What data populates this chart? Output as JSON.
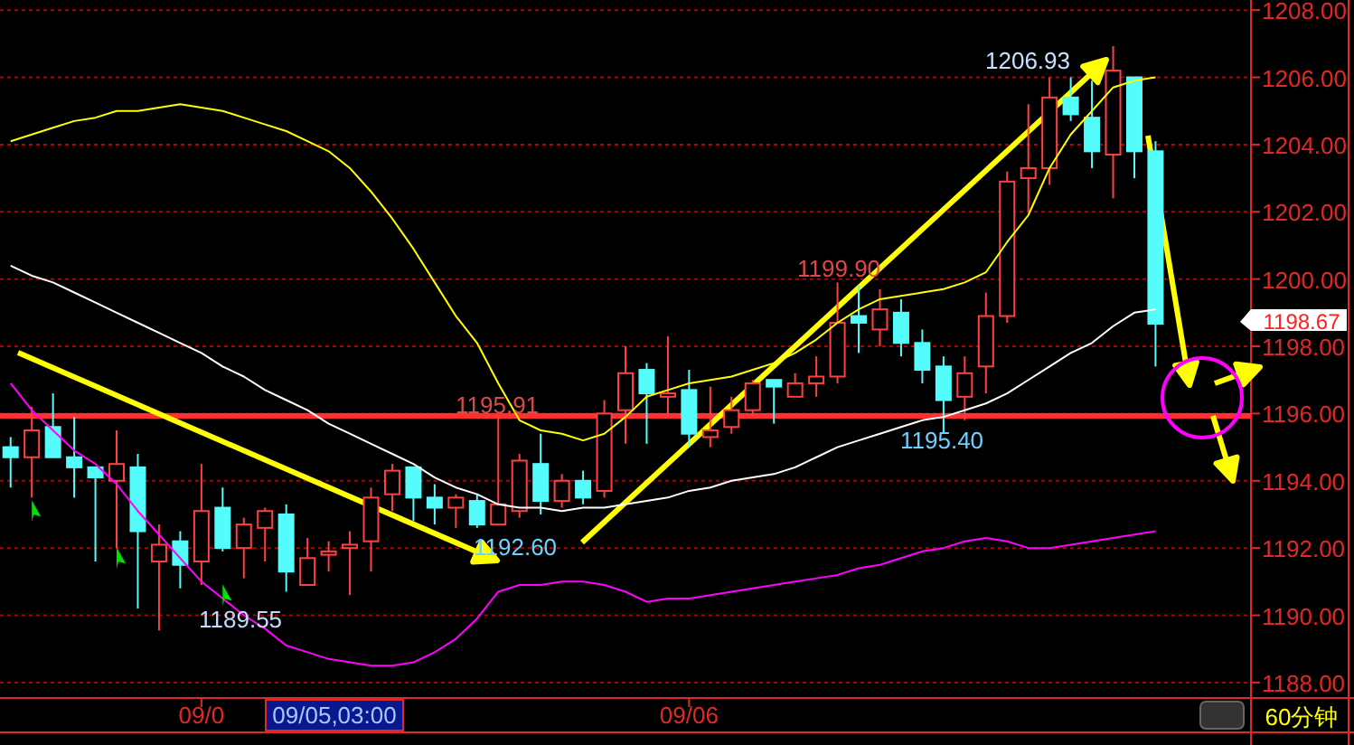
{
  "chart_data": {
    "type": "candlestick",
    "categories": [
      null,
      null,
      null,
      null,
      null,
      null,
      null,
      null,
      null,
      "09/0",
      null,
      null,
      null,
      null,
      null,
      null,
      null,
      null,
      null,
      null,
      null,
      null,
      null,
      null,
      null,
      null,
      null,
      null,
      null,
      null,
      null,
      null,
      "09/06",
      null,
      null,
      null,
      null,
      null,
      null,
      null,
      null,
      null,
      null,
      null,
      null,
      null,
      null,
      null,
      null,
      null,
      null,
      null,
      null,
      null,
      null,
      null,
      null,
      null,
      null
    ],
    "ylim": [
      1187.54,
      1208.3
    ],
    "yticks": [
      {
        "value": 1188,
        "label": "1188.00"
      },
      {
        "value": 1190,
        "label": "1190.00"
      },
      {
        "value": 1192,
        "label": "1192.00"
      },
      {
        "value": 1194,
        "label": "1194.00"
      },
      {
        "value": 1196,
        "label": "1196.00"
      },
      {
        "value": 1198,
        "label": "1198.00"
      },
      {
        "value": 1200,
        "label": "1200.00"
      },
      {
        "value": 1202,
        "label": "1202.00"
      },
      {
        "value": 1204,
        "label": "1204.00"
      },
      {
        "value": 1206,
        "label": "1206.00"
      },
      {
        "value": 1208,
        "label": "1208.00"
      }
    ],
    "grid": "y",
    "ohlc": [
      [
        1195.0,
        1195.3,
        1193.8,
        1194.7
      ],
      [
        1194.7,
        1196.2,
        1193.5,
        1195.5
      ],
      [
        1195.6,
        1196.6,
        1194.7,
        1194.7
      ],
      [
        1194.7,
        1195.9,
        1193.5,
        1194.4
      ],
      [
        1194.4,
        1194.4,
        1191.6,
        1194.1
      ],
      [
        1194.0,
        1195.5,
        1192.0,
        1194.5
      ],
      [
        1194.4,
        1194.8,
        1190.2,
        1192.5
      ],
      [
        1191.6,
        1192.7,
        1189.55,
        1192.1
      ],
      [
        1192.2,
        1192.5,
        1190.8,
        1191.5
      ],
      [
        1191.6,
        1194.5,
        1190.9,
        1193.1
      ],
      [
        1193.2,
        1193.8,
        1191.9,
        1192.0
      ],
      [
        1192.0,
        1192.9,
        1191.1,
        1192.7
      ],
      [
        1192.6,
        1193.2,
        1191.6,
        1193.1
      ],
      [
        1193.0,
        1193.3,
        1190.7,
        1191.3
      ],
      [
        1190.9,
        1192.3,
        1190.9,
        1191.7
      ],
      [
        1191.8,
        1192.2,
        1191.3,
        1191.9
      ],
      [
        1192.0,
        1192.5,
        1190.6,
        1192.1
      ],
      [
        1192.2,
        1193.8,
        1191.3,
        1193.5
      ],
      [
        1193.6,
        1194.5,
        1193.1,
        1194.3
      ],
      [
        1194.4,
        1194.4,
        1192.8,
        1193.5
      ],
      [
        1193.5,
        1193.9,
        1192.7,
        1193.2
      ],
      [
        1193.2,
        1193.6,
        1192.6,
        1193.5
      ],
      [
        1193.4,
        1193.6,
        1192.6,
        1192.7
      ],
      [
        1192.7,
        1195.91,
        1192.7,
        1193.3
      ],
      [
        1193.1,
        1194.8,
        1192.9,
        1194.6
      ],
      [
        1194.5,
        1195.4,
        1193.0,
        1193.4
      ],
      [
        1193.4,
        1194.2,
        1193.2,
        1194.0
      ],
      [
        1194.0,
        1194.3,
        1193.3,
        1193.5
      ],
      [
        1193.7,
        1196.4,
        1193.5,
        1196.0
      ],
      [
        1196.1,
        1198.0,
        1195.1,
        1197.2
      ],
      [
        1197.3,
        1197.5,
        1195.1,
        1196.6
      ],
      [
        1196.5,
        1198.3,
        1195.9,
        1196.6
      ],
      [
        1196.7,
        1197.3,
        1195.0,
        1195.4
      ],
      [
        1195.3,
        1196.8,
        1195.0,
        1195.5
      ],
      [
        1195.6,
        1196.5,
        1195.4,
        1196.1
      ],
      [
        1196.1,
        1197.0,
        1195.9,
        1196.9
      ],
      [
        1197.0,
        1197.0,
        1195.7,
        1196.8
      ],
      [
        1196.5,
        1197.2,
        1196.5,
        1196.9
      ],
      [
        1196.9,
        1197.7,
        1196.5,
        1197.1
      ],
      [
        1197.1,
        1199.9,
        1196.9,
        1198.7
      ],
      [
        1198.9,
        1199.8,
        1197.8,
        1198.7
      ],
      [
        1198.5,
        1199.7,
        1198.0,
        1199.1
      ],
      [
        1199.0,
        1199.4,
        1197.7,
        1198.1
      ],
      [
        1198.1,
        1198.5,
        1196.9,
        1197.3
      ],
      [
        1197.4,
        1197.7,
        1195.4,
        1196.4
      ],
      [
        1196.5,
        1197.7,
        1195.8,
        1197.2
      ],
      [
        1197.4,
        1199.6,
        1196.6,
        1198.9
      ],
      [
        1198.9,
        1203.2,
        1198.7,
        1202.9
      ],
      [
        1203.0,
        1205.2,
        1202.0,
        1203.3
      ],
      [
        1203.3,
        1206.0,
        1202.8,
        1205.4
      ],
      [
        1205.4,
        1206.0,
        1204.7,
        1204.9
      ],
      [
        1204.8,
        1205.9,
        1203.3,
        1203.8
      ],
      [
        1203.7,
        1206.93,
        1202.4,
        1206.2
      ],
      [
        1206.0,
        1206.0,
        1203.0,
        1203.8
      ],
      [
        1203.8,
        1204.1,
        1197.4,
        1198.67
      ],
      null,
      null,
      null,
      null
    ],
    "colors": [
      "#54fcfc",
      "#ff4040",
      "#54fcfc",
      "#54fcfc",
      "#54fcfc",
      "#ff4040",
      "#54fcfc",
      "#ff4040",
      "#54fcfc",
      "#ff4040",
      "#54fcfc",
      "#ff4040",
      "#ff4040",
      "#54fcfc",
      "#ff4040",
      "#ff4040",
      "#ff4040",
      "#ff4040",
      "#ff4040",
      "#54fcfc",
      "#54fcfc",
      "#ff4040",
      "#54fcfc",
      "#ff4040",
      "#ff4040",
      "#54fcfc",
      "#ff4040",
      "#54fcfc",
      "#ff4040",
      "#ff4040",
      "#54fcfc",
      "#ff4040",
      "#54fcfc",
      "#ff4040",
      "#ff4040",
      "#ff4040",
      "#54fcfc",
      "#ff4040",
      "#ff4040",
      "#ff4040",
      "#54fcfc",
      "#ff4040",
      "#54fcfc",
      "#54fcfc",
      "#54fcfc",
      "#ff4040",
      "#ff4040",
      "#ff4040",
      "#ff4040",
      "#ff4040",
      "#54fcfc",
      "#54fcfc",
      "#ff4040",
      "#54fcfc",
      "#54fcfc",
      null,
      null,
      null,
      null
    ],
    "series": [
      {
        "type": "line",
        "color": "#ffff00",
        "values": [
          1204.1,
          1204.3,
          1204.5,
          1204.7,
          1204.8,
          1205.0,
          1205.0,
          1205.1,
          1205.2,
          1205.1,
          1205.0,
          1204.8,
          1204.6,
          1204.4,
          1204.1,
          1203.8,
          1203.3,
          1202.6,
          1201.8,
          1200.9,
          1199.9,
          1198.9,
          1198.1,
          1196.9,
          1195.8,
          1195.5,
          1195.4,
          1195.2,
          1195.4,
          1195.9,
          1196.5,
          1196.7,
          1196.9,
          1197.0,
          1197.1,
          1197.3,
          1197.5,
          1197.8,
          1198.2,
          1198.7,
          1199.1,
          1199.4,
          1199.5,
          1199.6,
          1199.7,
          1199.9,
          1200.2,
          1201.1,
          1201.9,
          1203.3,
          1204.3,
          1205.0,
          1205.7,
          1205.9,
          1206.0,
          null,
          null,
          null,
          null
        ]
      },
      {
        "type": "line",
        "color": "#ffffff",
        "values": [
          1200.4,
          1200.1,
          1199.9,
          1199.6,
          1199.3,
          1199.0,
          1198.7,
          1198.4,
          1198.1,
          1197.8,
          1197.4,
          1197.1,
          1196.7,
          1196.4,
          1196.1,
          1195.7,
          1195.4,
          1195.1,
          1194.8,
          1194.5,
          1194.1,
          1193.8,
          1193.6,
          1193.3,
          1193.2,
          1193.2,
          1193.1,
          1193.2,
          1193.2,
          1193.3,
          1193.4,
          1193.5,
          1193.7,
          1193.8,
          1194.0,
          1194.1,
          1194.2,
          1194.4,
          1194.7,
          1195.0,
          1195.2,
          1195.4,
          1195.6,
          1195.8,
          1195.9,
          1196.1,
          1196.3,
          1196.6,
          1197.0,
          1197.4,
          1197.8,
          1198.1,
          1198.6,
          1199.0,
          1199.1,
          null,
          null,
          null,
          null
        ]
      },
      {
        "type": "line",
        "color": "#ff00ff",
        "values": [
          1196.9,
          1196.1,
          1195.5,
          1194.9,
          1194.5,
          1193.9,
          1193.1,
          1192.4,
          1191.7,
          1191.0,
          1190.5,
          1190.0,
          1189.6,
          1189.1,
          1188.9,
          1188.7,
          1188.6,
          1188.5,
          1188.5,
          1188.6,
          1188.9,
          1189.3,
          1189.9,
          1190.7,
          1190.9,
          1190.9,
          1191.0,
          1191.0,
          1190.9,
          1190.7,
          1190.4,
          1190.5,
          1190.5,
          1190.6,
          1190.7,
          1190.8,
          1190.9,
          1191.0,
          1191.1,
          1191.2,
          1191.4,
          1191.5,
          1191.7,
          1191.9,
          1192.0,
          1192.2,
          1192.3,
          1192.2,
          1192.0,
          1192.0,
          1192.1,
          1192.2,
          1192.3,
          1192.4,
          1192.5,
          null,
          null,
          null,
          null
        ]
      },
      {
        "type": "scatter",
        "marker": "diamond",
        "color": "#00e000",
        "values": [
          null,
          1193.1,
          null,
          null,
          null,
          1191.7,
          null,
          null,
          null,
          null,
          1190.6,
          null,
          null,
          null,
          null,
          null,
          null,
          null,
          null,
          null,
          null,
          null,
          null,
          null,
          null,
          null,
          null,
          null,
          null,
          null,
          null,
          null,
          null,
          null,
          null,
          null,
          null,
          null,
          null,
          null,
          null,
          null,
          null,
          null,
          null,
          null,
          null,
          null,
          null,
          null,
          null,
          null,
          null,
          null,
          null,
          null,
          null,
          null,
          null
        ]
      }
    ],
    "ref_lines": [
      {
        "axis": "y",
        "value": 1195.93,
        "color": "#ff3030"
      }
    ],
    "annotations": [
      "1206.93",
      {
        "text": "1199.90",
        "y": 1199.9
      },
      {
        "text": "1195.91",
        "y": 1195.91
      },
      {
        "text": "1195.40",
        "y": 1195.4
      },
      "1192.60",
      "1189.55",
      "1198.67",
      "09/05,03:00",
      "60分钟"
    ]
  }
}
